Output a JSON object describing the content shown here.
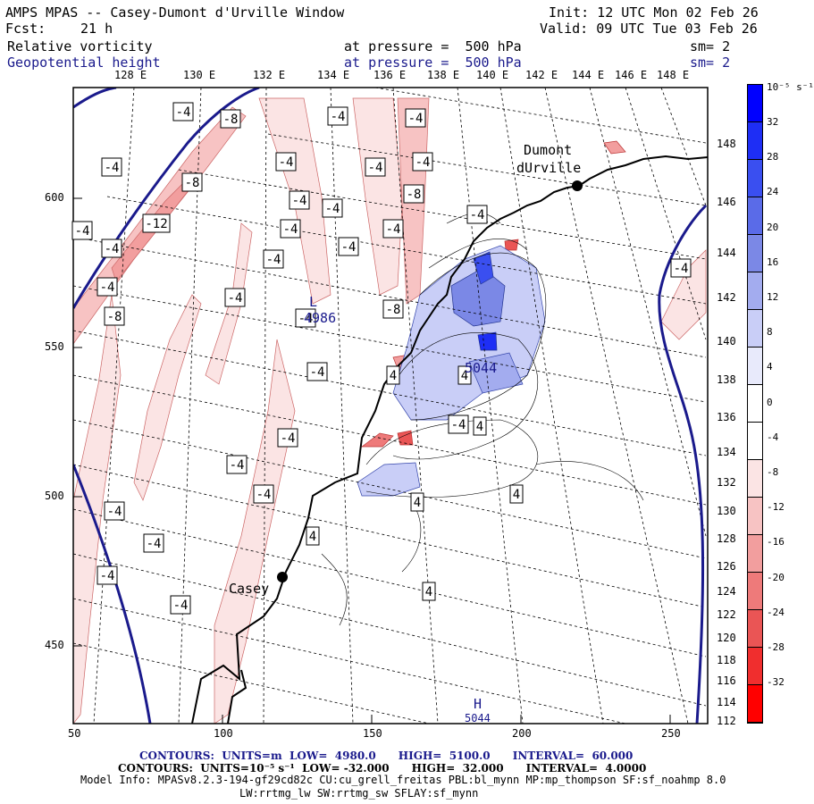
{
  "header": {
    "title": "AMPS MPAS -- Casey-Dumont d'Urville Window",
    "fcst_label": "Fcst:",
    "fcst_value": "21 h",
    "init": "Init: 12 UTC Mon 02 Feb 26",
    "valid": "Valid: 09 UTC Tue 03 Feb 26",
    "field1_name": "Relative vorticity",
    "field1_level": "at pressure =  500 hPa",
    "field1_sm": "sm= 2",
    "field2_name": "Geopotential height",
    "field2_level": "at pressure =  500 hPa",
    "field2_sm": "sm= 2"
  },
  "map": {
    "lon_top_labels": [
      "128 E",
      "130 E",
      "132 E",
      "134 E",
      "136 E",
      "138 E",
      "140 E",
      "142 E",
      "144 E",
      "146 E",
      "148 E"
    ],
    "lat_right_labels": [
      "148",
      "146",
      "144",
      "142",
      "140",
      "138",
      "136",
      "134",
      "132",
      "130",
      "128",
      "126",
      "124",
      "122",
      "120",
      "118",
      "116",
      "114",
      "112"
    ],
    "x_ticks": [
      "50",
      "100",
      "150",
      "200",
      "250"
    ],
    "y_ticks": [
      "600",
      "550",
      "500",
      "450"
    ],
    "stations": [
      {
        "name": "Dumont",
        "name2": "dUrville"
      },
      {
        "name": "Casey",
        "name2": ""
      }
    ],
    "vorticity_labels": [
      "-4",
      "-4",
      "-4",
      "-4",
      "-4",
      "-4",
      "-4",
      "-8",
      "-8",
      "-12",
      "-4",
      "-4",
      "-8",
      "-4",
      "-4",
      "-4",
      "-4",
      "-8",
      "-8",
      "-4",
      "-4",
      "-4",
      "-4",
      "-4",
      "-4",
      "-4",
      "-4",
      "-4",
      "-4",
      "-4",
      "-4",
      "-4",
      "-4",
      "-4",
      "-4",
      "4",
      "4",
      "4",
      "4",
      "4",
      "4",
      "4"
    ],
    "height_labels": [
      "4986",
      "5044"
    ],
    "low_marker": "L",
    "high_marker": "H",
    "high_marker_value": "5044"
  },
  "colorbar": {
    "units": "10⁻⁵ s⁻¹",
    "labels": [
      "32",
      "28",
      "24",
      "20",
      "16",
      "12",
      "8",
      "4",
      "0",
      "-4",
      "-8",
      "-12",
      "-16",
      "-20",
      "-24",
      "-28",
      "-32"
    ],
    "colors": [
      "#0000ff",
      "#1e2ef5",
      "#3a4ff0",
      "#5a6be8",
      "#7b88e6",
      "#a3acef",
      "#c9cef7",
      "#e8eafb",
      "#ffffff",
      "#ffffff",
      "#fbe4e4",
      "#f7c3c3",
      "#f29e9e",
      "#ee7a7a",
      "#ea5555",
      "#f02e2e",
      "#ff0000"
    ]
  },
  "footer": {
    "contours1": "CONTOURS:  UNITS=m  LOW=  4980.0      HIGH=  5100.0      INTERVAL=  60.000",
    "contours2": "CONTOURS:  UNITS=10⁻⁵ s⁻¹  LOW= -32.000      HIGH=  32.000      INTERVAL=  4.0000",
    "model_info": "Model Info: MPASv8.2.3-194-gf29cd82c CU:cu_grell_freitas PBL:bl_mynn MP:mp_thompson SF:sf_noahmp 8.0",
    "model_info2": "LW:rrtmg_lw SW:rrtmg_sw SFLAY:sf_mynn"
  }
}
